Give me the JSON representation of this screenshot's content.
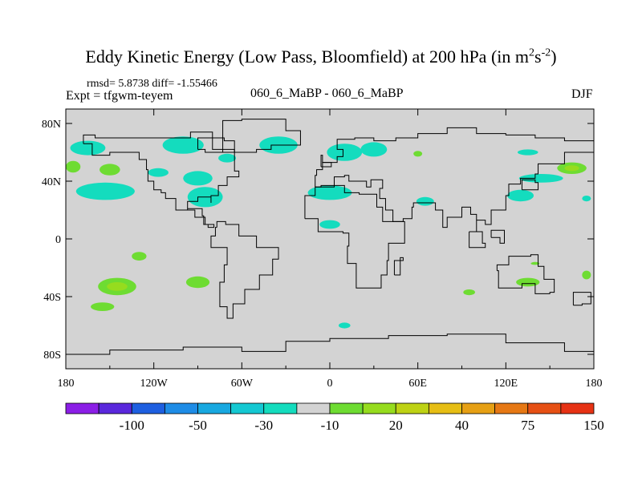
{
  "header": {
    "title_main": "Eddy Kinetic Energy (Low Pass, Bloomfield) at 200 hPa (in m",
    "title_sup1": "2",
    "title_mid": "s",
    "title_sup2": "-2",
    "title_end": ")",
    "stats": "rmsd= 5.8738 diff= -1.55466",
    "expt": "Expt = tfgwm-teyem",
    "center_label": "060_6_MaBP - 060_6_MaBP",
    "season": "DJF"
  },
  "colors": {
    "background_field": "#d3d3d3",
    "coast": "#000000",
    "palette": [
      "#8b1ee6",
      "#5a28dc",
      "#1e5fe0",
      "#1e8ce6",
      "#18a8e0",
      "#14c8d2",
      "#14dcbe",
      "#d3d3d3",
      "#6edc32",
      "#96dc1e",
      "#bed214",
      "#e6be14",
      "#e6a014",
      "#e67814",
      "#e65014",
      "#e63214"
    ]
  },
  "chart_data": {
    "type": "heatmap",
    "title": "Eddy Kinetic Energy (Low Pass, Bloomfield) at 200 hPa (in m^2 s^-2)",
    "x_axis": {
      "range": [
        -180,
        180
      ],
      "ticks": [
        -180,
        -120,
        -60,
        0,
        60,
        120,
        180
      ],
      "tick_labels": [
        "180",
        "120W",
        "60W",
        "0",
        "60E",
        "120E",
        "180"
      ]
    },
    "y_axis": {
      "range": [
        -90,
        90
      ],
      "ticks": [
        80,
        40,
        0,
        -40,
        -80
      ],
      "tick_labels": [
        "80N",
        "40N",
        "0",
        "40S",
        "80S"
      ]
    },
    "colorbar": {
      "levels": [
        "-100",
        "-50",
        "-30",
        "-10",
        "20",
        "40",
        "75",
        "150"
      ],
      "n_bins": 16
    },
    "anomaly_patches": [
      {
        "lon": -165,
        "lat": 63,
        "dlon": 12,
        "dlat": 5,
        "bin": 6
      },
      {
        "lon": -100,
        "lat": 65,
        "dlon": 14,
        "dlat": 6,
        "bin": 6
      },
      {
        "lon": -70,
        "lat": 56,
        "dlon": 6,
        "dlat": 3,
        "bin": 6
      },
      {
        "lon": -35,
        "lat": 65,
        "dlon": 13,
        "dlat": 6,
        "bin": 6
      },
      {
        "lon": 10,
        "lat": 60,
        "dlon": 12,
        "dlat": 6,
        "bin": 6
      },
      {
        "lon": 30,
        "lat": 62,
        "dlon": 9,
        "dlat": 5,
        "bin": 6
      },
      {
        "lon": 60,
        "lat": 59,
        "dlon": 3,
        "dlat": 2,
        "bin": 8
      },
      {
        "lon": 135,
        "lat": 60,
        "dlon": 7,
        "dlat": 2,
        "bin": 6
      },
      {
        "lon": -175,
        "lat": 50,
        "dlon": 5,
        "dlat": 4,
        "bin": 8
      },
      {
        "lon": -150,
        "lat": 48,
        "dlon": 7,
        "dlat": 4,
        "bin": 8
      },
      {
        "lon": -117,
        "lat": 46,
        "dlon": 7,
        "dlat": 3,
        "bin": 6
      },
      {
        "lon": -90,
        "lat": 42,
        "dlon": 10,
        "dlat": 5,
        "bin": 6
      },
      {
        "lon": -153,
        "lat": 33,
        "dlon": 20,
        "dlat": 6,
        "bin": 6
      },
      {
        "lon": -85,
        "lat": 29,
        "dlon": 12,
        "dlat": 7,
        "bin": 6
      },
      {
        "lon": 165,
        "lat": 49,
        "dlon": 10,
        "dlat": 4,
        "bin": 8
      },
      {
        "lon": 144,
        "lat": 42,
        "dlon": 15,
        "dlat": 3,
        "bin": 6
      },
      {
        "lon": 0,
        "lat": 32,
        "dlon": 15,
        "dlat": 5,
        "bin": 6
      },
      {
        "lon": 0,
        "lat": 10,
        "dlon": 7,
        "dlat": 3,
        "bin": 6
      },
      {
        "lon": 65,
        "lat": 26,
        "dlon": 6,
        "dlat": 3,
        "bin": 6
      },
      {
        "lon": 130,
        "lat": 30,
        "dlon": 9,
        "dlat": 4,
        "bin": 6
      },
      {
        "lon": 175,
        "lat": 28,
        "dlon": 3,
        "dlat": 2,
        "bin": 6
      },
      {
        "lon": -145,
        "lat": -33,
        "dlon": 13,
        "dlat": 6,
        "bin": 8
      },
      {
        "lon": -90,
        "lat": -30,
        "dlon": 8,
        "dlat": 4,
        "bin": 8
      },
      {
        "lon": -155,
        "lat": -47,
        "dlon": 8,
        "dlat": 3,
        "bin": 8
      },
      {
        "lon": -130,
        "lat": -12,
        "dlon": 5,
        "dlat": 3,
        "bin": 8
      },
      {
        "lon": 10,
        "lat": -60,
        "dlon": 4,
        "dlat": 2,
        "bin": 6
      },
      {
        "lon": 95,
        "lat": -37,
        "dlon": 4,
        "dlat": 2,
        "bin": 8
      },
      {
        "lon": 135,
        "lat": -30,
        "dlon": 8,
        "dlat": 3,
        "bin": 8
      },
      {
        "lon": 175,
        "lat": -25,
        "dlon": 3,
        "dlat": 3,
        "bin": 8
      },
      {
        "lon": 140,
        "lat": -17,
        "dlon": 3,
        "dlat": 1,
        "bin": 8
      }
    ],
    "peak_patches": [
      {
        "lon": -145,
        "lat": -33,
        "dlon": 7,
        "dlat": 3,
        "bin": 9
      },
      {
        "lon": 165,
        "lat": 49,
        "dlon": 5,
        "dlat": 2,
        "bin": 9
      }
    ],
    "coastlines": [
      [
        [
          -168,
          66
        ],
        [
          -160,
          72
        ],
        [
          -140,
          70
        ],
        [
          -120,
          70
        ],
        [
          -95,
          70
        ],
        [
          -80,
          74
        ],
        [
          -65,
          62
        ],
        [
          -62,
          47
        ],
        [
          -70,
          43
        ],
        [
          -76,
          37
        ],
        [
          -81,
          30
        ],
        [
          -81,
          25
        ],
        [
          -90,
          29
        ],
        [
          -97,
          26
        ],
        [
          -97,
          20
        ],
        [
          -87,
          21
        ],
        [
          -86,
          16
        ],
        [
          -83,
          10
        ],
        [
          -79,
          8
        ],
        [
          -85,
          10
        ],
        [
          -92,
          15
        ],
        [
          -105,
          20
        ],
        [
          -112,
          28
        ],
        [
          -115,
          32
        ],
        [
          -120,
          34
        ],
        [
          -124,
          40
        ],
        [
          -125,
          48
        ],
        [
          -130,
          55
        ],
        [
          -150,
          60
        ],
        [
          -162,
          58
        ],
        [
          -168,
          66
        ]
      ],
      [
        [
          -77,
          8
        ],
        [
          -71,
          12
        ],
        [
          -62,
          10
        ],
        [
          -50,
          2
        ],
        [
          -35,
          -6
        ],
        [
          -39,
          -14
        ],
        [
          -48,
          -25
        ],
        [
          -58,
          -35
        ],
        [
          -66,
          -45
        ],
        [
          -70,
          -55
        ],
        [
          -75,
          -47
        ],
        [
          -72,
          -30
        ],
        [
          -70,
          -18
        ],
        [
          -81,
          -6
        ],
        [
          -78,
          2
        ],
        [
          -77,
          8
        ]
      ],
      [
        [
          -10,
          36
        ],
        [
          -9,
          44
        ],
        [
          -5,
          48
        ],
        [
          5,
          53
        ],
        [
          9,
          57
        ],
        [
          5,
          62
        ],
        [
          17,
          69
        ],
        [
          30,
          70
        ],
        [
          45,
          68
        ],
        [
          60,
          70
        ],
        [
          80,
          73
        ],
        [
          100,
          77
        ],
        [
          120,
          73
        ],
        [
          140,
          72
        ],
        [
          160,
          70
        ],
        [
          180,
          68
        ],
        [
          180,
          64
        ],
        [
          160,
          60
        ],
        [
          142,
          52
        ],
        [
          140,
          45
        ],
        [
          130,
          42
        ],
        [
          122,
          38
        ],
        [
          120,
          30
        ],
        [
          110,
          20
        ],
        [
          106,
          10
        ],
        [
          100,
          13
        ],
        [
          100,
          5
        ],
        [
          96,
          17
        ],
        [
          90,
          22
        ],
        [
          80,
          15
        ],
        [
          77,
          8
        ],
        [
          72,
          20
        ],
        [
          66,
          25
        ],
        [
          57,
          25
        ],
        [
          56,
          22
        ],
        [
          50,
          14
        ],
        [
          43,
          12
        ],
        [
          38,
          20
        ],
        [
          34,
          28
        ],
        [
          36,
          35
        ],
        [
          28,
          41
        ],
        [
          25,
          36
        ],
        [
          13,
          40
        ],
        [
          10,
          44
        ],
        [
          3,
          43
        ],
        [
          -10,
          36
        ]
      ],
      [
        [
          -17,
          14
        ],
        [
          -17,
          21
        ],
        [
          -10,
          30
        ],
        [
          -6,
          36
        ],
        [
          10,
          37
        ],
        [
          20,
          32
        ],
        [
          32,
          31
        ],
        [
          36,
          22
        ],
        [
          43,
          12
        ],
        [
          51,
          12
        ],
        [
          40,
          -3
        ],
        [
          39,
          -15
        ],
        [
          35,
          -25
        ],
        [
          27,
          -34
        ],
        [
          18,
          -34
        ],
        [
          12,
          -17
        ],
        [
          13,
          -5
        ],
        [
          9,
          4
        ],
        [
          -8,
          5
        ],
        [
          -17,
          14
        ]
      ],
      [
        [
          114,
          -22
        ],
        [
          122,
          -18
        ],
        [
          130,
          -12
        ],
        [
          137,
          -12
        ],
        [
          142,
          -11
        ],
        [
          146,
          -19
        ],
        [
          153,
          -28
        ],
        [
          150,
          -37
        ],
        [
          140,
          -38
        ],
        [
          131,
          -31
        ],
        [
          115,
          -34
        ],
        [
          114,
          -22
        ]
      ],
      [
        [
          -73,
          60
        ],
        [
          -60,
          82
        ],
        [
          -30,
          83
        ],
        [
          -20,
          75
        ],
        [
          -40,
          65
        ],
        [
          -50,
          62
        ],
        [
          -73,
          60
        ]
      ],
      [
        [
          -6,
          50
        ],
        [
          -5,
          58
        ],
        [
          1,
          53
        ],
        [
          -6,
          50
        ]
      ],
      [
        [
          131,
          34
        ],
        [
          140,
          41
        ],
        [
          142,
          39
        ],
        [
          136,
          34
        ],
        [
          131,
          34
        ]
      ],
      [
        [
          95,
          5
        ],
        [
          106,
          -6
        ],
        [
          104,
          -3
        ],
        [
          95,
          5
        ]
      ],
      [
        [
          110,
          1
        ],
        [
          119,
          6
        ],
        [
          116,
          -3
        ],
        [
          110,
          1
        ]
      ],
      [
        [
          44,
          -25
        ],
        [
          50,
          -15
        ],
        [
          48,
          -13
        ],
        [
          44,
          -25
        ]
      ],
      [
        [
          166,
          -46
        ],
        [
          174,
          -37
        ],
        [
          178,
          -37
        ],
        [
          172,
          -45
        ],
        [
          166,
          -46
        ]
      ],
      [
        [
          -90,
          62
        ],
        [
          -72,
          70
        ],
        [
          -65,
          68
        ],
        [
          -85,
          60
        ],
        [
          -90,
          62
        ]
      ],
      [
        [
          -180,
          -78
        ],
        [
          -150,
          -80
        ],
        [
          -100,
          -77
        ],
        [
          -60,
          -75
        ],
        [
          -30,
          -78
        ],
        [
          0,
          -71
        ],
        [
          40,
          -69
        ],
        [
          80,
          -67
        ],
        [
          120,
          -66
        ],
        [
          160,
          -72
        ],
        [
          180,
          -78
        ]
      ]
    ]
  }
}
